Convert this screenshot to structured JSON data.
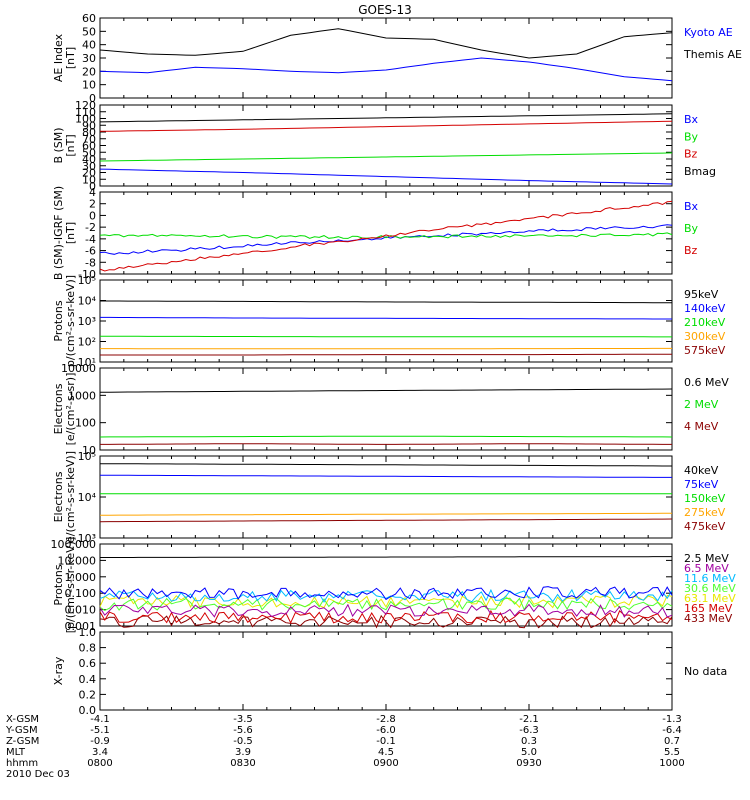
{
  "title": "GOES-13",
  "colors": {
    "black": "#000000",
    "blue": "#0000ff",
    "red": "#d40000",
    "green": "#00dd00",
    "orange": "#ffa500",
    "dark_red": "#8b0000",
    "yellow": "#e8e800",
    "cyan": "#00bbff",
    "purple": "#a000a0",
    "lime": "#50ff30"
  },
  "x_axis": {
    "range": [
      "0800",
      "1000"
    ],
    "rows": [
      {
        "label": "X-GSM",
        "values": [
          "-4.1",
          "-3.5",
          "-2.8",
          "-2.1",
          "-1.3"
        ]
      },
      {
        "label": "Y-GSM",
        "values": [
          "-5.1",
          "-5.6",
          "-6.0",
          "-6.3",
          "-6.4"
        ]
      },
      {
        "label": "Z-GSM",
        "values": [
          "-0.9",
          "-0.5",
          "-0.1",
          "0.3",
          "0.7"
        ]
      },
      {
        "label": "MLT",
        "values": [
          "3.4",
          "3.9",
          "4.5",
          "5.0",
          "5.5"
        ]
      },
      {
        "label": "hhmm",
        "values": [
          "0800",
          "0830",
          "0900",
          "0930",
          "1000"
        ]
      }
    ],
    "date": "2010 Dec 03"
  },
  "chart_data": [
    {
      "type": "line",
      "scale": "linear",
      "ylabel": [
        "AE Index",
        "[nT]"
      ],
      "ylim": [
        0,
        60
      ],
      "ticks": [
        "0",
        "10",
        "20",
        "30",
        "40",
        "50",
        "60"
      ],
      "x": [
        "0800",
        "0810",
        "0820",
        "0830",
        "0840",
        "0850",
        "0900",
        "0910",
        "0920",
        "0930",
        "0940",
        "0950",
        "1000"
      ],
      "series": [
        {
          "name": "Kyoto AE",
          "color": "blue",
          "values": [
            20,
            19,
            23,
            22,
            20,
            19,
            21,
            26,
            30,
            27,
            22,
            16,
            13
          ]
        },
        {
          "name": "Themis AE",
          "color": "black",
          "values": [
            36,
            33,
            32,
            35,
            47,
            52,
            45,
            44,
            36,
            30,
            33,
            46,
            49
          ]
        }
      ]
    },
    {
      "type": "line",
      "scale": "linear",
      "ylabel": [
        "B (SM)",
        "[nT]"
      ],
      "ylim": [
        0,
        120
      ],
      "ticks": [
        "0",
        "10",
        "20",
        "30",
        "40",
        "50",
        "60",
        "70",
        "80",
        "90",
        "100",
        "110",
        "120"
      ],
      "x": [
        "0800",
        "0830",
        "0900",
        "0930",
        "1000"
      ],
      "series": [
        {
          "name": "Bx",
          "color": "blue",
          "values": [
            25,
            20,
            14,
            8,
            3
          ]
        },
        {
          "name": "By",
          "color": "green",
          "values": [
            37,
            40,
            43,
            46,
            49
          ]
        },
        {
          "name": "Bz",
          "color": "red",
          "values": [
            81,
            84,
            88,
            92,
            96
          ]
        },
        {
          "name": "Bmag",
          "color": "black",
          "values": [
            95,
            98,
            101,
            104,
            107
          ]
        }
      ]
    },
    {
      "type": "line",
      "scale": "linear",
      "ylabel": [
        "B (SM)-IGRF (SM)",
        "[nT]"
      ],
      "ylim": [
        -10,
        4
      ],
      "ticks": [
        "-10",
        "-8",
        "-6",
        "-4",
        "-2",
        "0",
        "2",
        "4"
      ],
      "x": [
        "0800",
        "0815",
        "0830",
        "0845",
        "0900",
        "0915",
        "0930",
        "0945",
        "1000"
      ],
      "series": [
        {
          "name": "Bx",
          "color": "blue",
          "values": [
            -6.5,
            -6.0,
            -5.2,
            -4.5,
            -3.9,
            -3.3,
            -2.7,
            -2.2,
            -1.8
          ]
        },
        {
          "name": "By",
          "color": "green",
          "values": [
            -3.5,
            -3.4,
            -3.6,
            -3.7,
            -3.7,
            -3.6,
            -3.5,
            -3.4,
            -3.2
          ]
        },
        {
          "name": "Bz",
          "color": "red",
          "values": [
            -9.4,
            -7.9,
            -6.4,
            -4.9,
            -3.5,
            -2.0,
            -0.6,
            0.9,
            2.3
          ]
        }
      ]
    },
    {
      "type": "line",
      "scale": "log",
      "ylabel": [
        "Protons",
        "p/(cm²-s-sr-keV)]"
      ],
      "ylim": [
        10,
        100000
      ],
      "ticks": [
        "10¹",
        "10²",
        "10³",
        "10⁴",
        "10⁵"
      ],
      "x": [
        "0800",
        "0830",
        "0900",
        "0930",
        "1000"
      ],
      "series": [
        {
          "name": "575keV",
          "color": "dark_red",
          "values": [
            22,
            22,
            23,
            23,
            24
          ]
        },
        {
          "name": "300keV",
          "color": "orange",
          "values": [
            45,
            44,
            44,
            45,
            46
          ]
        },
        {
          "name": "210keV",
          "color": "green",
          "values": [
            180,
            175,
            170,
            172,
            168
          ]
        },
        {
          "name": "140keV",
          "color": "blue",
          "values": [
            1500,
            1400,
            1350,
            1300,
            1250
          ]
        },
        {
          "name": "95keV",
          "color": "black",
          "values": [
            9500,
            9000,
            8500,
            8200,
            7800
          ]
        }
      ]
    },
    {
      "type": "line",
      "scale": "log",
      "ylabel": [
        "Electrons",
        "[e/(cm²-s-sr)]"
      ],
      "ylim": [
        10,
        10000
      ],
      "ticks": [
        "10",
        "100",
        "1000",
        "10000"
      ],
      "x": [
        "0800",
        "0830",
        "0900",
        "0930",
        "1000"
      ],
      "series": [
        {
          "name": "4 MeV",
          "color": "dark_red",
          "values": [
            16,
            17,
            16,
            17,
            16
          ]
        },
        {
          "name": "2 MeV",
          "color": "green",
          "values": [
            30,
            31,
            32,
            31,
            30
          ]
        },
        {
          "name": "0.6 MeV",
          "color": "black",
          "values": [
            1300,
            1400,
            1500,
            1600,
            1700
          ]
        }
      ]
    },
    {
      "type": "line",
      "scale": "log",
      "ylabel": [
        "Electrons",
        "e/(cm²-s-sr-keV)]"
      ],
      "ylim": [
        1000,
        100000
      ],
      "ticks": [
        "10³",
        "10⁴",
        "10⁵"
      ],
      "x": [
        "0800",
        "0830",
        "0900",
        "0930",
        "1000"
      ],
      "series": [
        {
          "name": "475keV",
          "color": "dark_red",
          "values": [
            2500,
            2600,
            2700,
            2800,
            2900
          ]
        },
        {
          "name": "275keV",
          "color": "orange",
          "values": [
            3600,
            3700,
            3800,
            3900,
            4000
          ]
        },
        {
          "name": "150keV",
          "color": "green",
          "values": [
            12000,
            12000,
            12000,
            12000,
            12000
          ]
        },
        {
          "name": "75keV",
          "color": "blue",
          "values": [
            34000,
            33000,
            32000,
            31000,
            30000
          ]
        },
        {
          "name": "40keV",
          "color": "black",
          "values": [
            65000,
            63000,
            61000,
            59000,
            57000
          ]
        }
      ]
    },
    {
      "type": "line",
      "scale": "log",
      "ylabel": [
        "Protons",
        "[p/(cm²-s-sr-keV)]"
      ],
      "ylim": [
        0.001,
        100
      ],
      "ticks": [
        "0.001",
        "0.010",
        "0.100",
        "1.000",
        "10.000",
        "100.000"
      ],
      "x": [
        "0800",
        "0830",
        "0900",
        "0930",
        "1000"
      ],
      "series": [
        {
          "name": "433 MeV",
          "color": "dark_red",
          "values": [
            0.0018,
            0.0018,
            0.0019,
            0.0018,
            0.0019
          ]
        },
        {
          "name": "165 MeV",
          "color": "red",
          "values": [
            0.0035,
            0.0036,
            0.0035,
            0.0037,
            0.0036
          ]
        },
        {
          "name": "63.1 MeV",
          "color": "yellow",
          "values": [
            0.03,
            0.031,
            0.03,
            0.031,
            0.032
          ]
        },
        {
          "name": "30.6 MeV",
          "color": "lime",
          "values": [
            0.02,
            0.021,
            0.02,
            0.022,
            0.021
          ]
        },
        {
          "name": "11.6 MeV",
          "color": "cyan",
          "values": [
            0.06,
            0.07,
            0.065,
            0.07,
            0.068
          ]
        },
        {
          "name": "6.5 MeV",
          "color": "purple",
          "values": [
            0.008,
            0.008,
            0.009,
            0.009,
            0.008
          ]
        },
        {
          "name": "2.5 MeV",
          "color": "black",
          "values": [
            15,
            15.5,
            16,
            16.5,
            17
          ]
        }
      ],
      "extra_series": [
        {
          "name": "",
          "color": "blue",
          "values": [
            0.09,
            0.1,
            0.09,
            0.11,
            0.1
          ]
        }
      ]
    },
    {
      "type": "line",
      "scale": "linear",
      "ylabel": [
        "X-ray",
        ""
      ],
      "ylim": [
        0,
        1
      ],
      "ticks": [
        "0.0",
        "0.2",
        "0.4",
        "0.6",
        "0.8",
        "1.0"
      ],
      "x": [],
      "series": [],
      "note": "No data"
    }
  ]
}
